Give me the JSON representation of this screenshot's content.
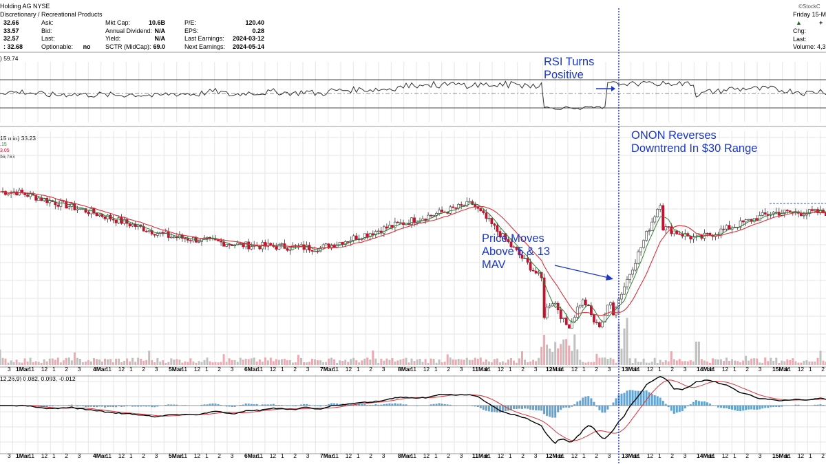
{
  "header": {
    "title": "Holding AG",
    "exchange": "NYSE",
    "sector": "Discretionary / Recreational Products",
    "brand": "©StockC",
    "date": "Friday 15-M",
    "col0": [
      "32.66",
      "33.57",
      "32.57",
      ": 32.68"
    ],
    "col1_labels": [
      "Ask:",
      "Bid:",
      "Last:",
      "Optionable:"
    ],
    "optionable": "no",
    "col2_labels": [
      "Mkt Cap:",
      "Annual Dividend:",
      "Yield:",
      "SCTR (MidCap):"
    ],
    "col2_values": [
      "10.6B",
      "N/A",
      "N/A",
      "69.0"
    ],
    "col3_labels": [
      "P/E:",
      "EPS:",
      "Last Earnings:",
      "Next Earnings:"
    ],
    "col3_values": [
      "120.40",
      "0.28",
      "2024-03-12",
      "2024-05-14"
    ],
    "right_labels": [
      "Chg:",
      "Last:",
      "Volume: 4,3"
    ]
  },
  "rsi_label": ") 59.74",
  "price_label": "15 min) 33.23",
  "price_sublabels": [
    ".15",
    "3.05",
    "59,783"
  ],
  "macd_label": "12,26,9) 0.082, 0.093, -0.012",
  "annotations": {
    "rsi": [
      "RSI Turns",
      "Positive"
    ],
    "reversal": [
      "ONON Reverses",
      "Downtrend In $30 Range"
    ],
    "mav": [
      "Price Moves",
      "Above 5 & 13",
      "MAV"
    ]
  },
  "chart_data": {
    "type": "candlestick",
    "interval": "15 min",
    "days": [
      "1Mar",
      "4Mar",
      "5Mar",
      "6Mar",
      "7Mar",
      "8Mar",
      "11Mar",
      "12Mar",
      "13Mar",
      "14Mar",
      "15Mar"
    ],
    "hour_ticks": [
      "11",
      "12",
      "1",
      "2",
      "3"
    ],
    "daily_close": [
      33.4,
      32.7,
      31.9,
      31.6,
      31.5,
      32.3,
      33.0,
      30.3,
      32.7,
      31.8,
      32.7
    ],
    "moving_averages": [
      "5",
      "13"
    ],
    "colors": {
      "up": "#ffffff",
      "down": "#c8102e",
      "ma_fast": "#2e7d32",
      "ma_slow": "#d9303a",
      "macd": "#000000",
      "signal": "#d9303a",
      "histogram": "#3a8fc8",
      "annotation": "#1a37c8"
    },
    "rsi_levels": [
      70,
      30
    ],
    "grid": true
  }
}
